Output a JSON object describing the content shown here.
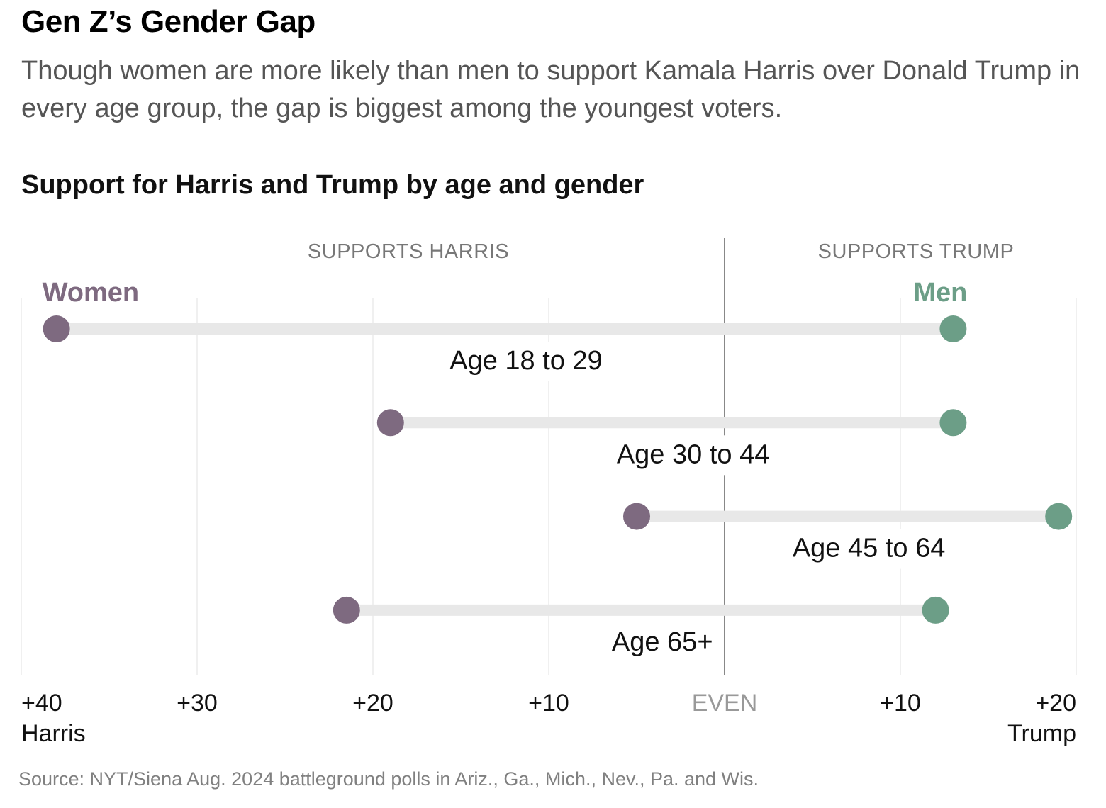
{
  "headline": "Gen Z’s Gender Gap",
  "dek": "Though women are more likely than men to support Kamala Harris over Donald Trump in every age group, the gap is biggest among the youngest voters.",
  "chart_title": "Support for Harris and Trump by age and gender",
  "source": "Source: NYT/Siena Aug. 2024 battleground polls in Ariz., Ga., Mich., Nev., Pa. and Wis.",
  "colors": {
    "women": "#7e6a80",
    "men": "#6c9e87",
    "bar": "#e8e8e8",
    "grid": "#ececec",
    "even_line": "#888888"
  },
  "chart_data": {
    "type": "dumbbell",
    "title": "Support for Harris and Trump by age and gender",
    "x_unit": "margin in percentage points (negative = Harris lead, positive = Trump lead)",
    "xlim": [
      -40,
      20
    ],
    "section_labels": {
      "left": "SUPPORTS HARRIS",
      "right": "SUPPORTS TRUMP"
    },
    "ticks": [
      {
        "value": -40,
        "label": "+40",
        "sublabel": "Harris"
      },
      {
        "value": -30,
        "label": "+30",
        "sublabel": ""
      },
      {
        "value": -20,
        "label": "+20",
        "sublabel": ""
      },
      {
        "value": -10,
        "label": "+10",
        "sublabel": ""
      },
      {
        "value": 0,
        "label": "EVEN",
        "sublabel": ""
      },
      {
        "value": 10,
        "label": "+10",
        "sublabel": ""
      },
      {
        "value": 20,
        "label": "+20",
        "sublabel": "Trump"
      }
    ],
    "series": [
      {
        "name": "Women",
        "key": "women"
      },
      {
        "name": "Men",
        "key": "men"
      }
    ],
    "groups": [
      {
        "label": "Age 18 to 29",
        "women": -38,
        "men": 13
      },
      {
        "label": "Age 30 to 44",
        "women": -19,
        "men": 13
      },
      {
        "label": "Age 45 to 64",
        "women": -5,
        "men": 19
      },
      {
        "label": "Age 65+",
        "women": -21.5,
        "men": 12
      }
    ]
  }
}
